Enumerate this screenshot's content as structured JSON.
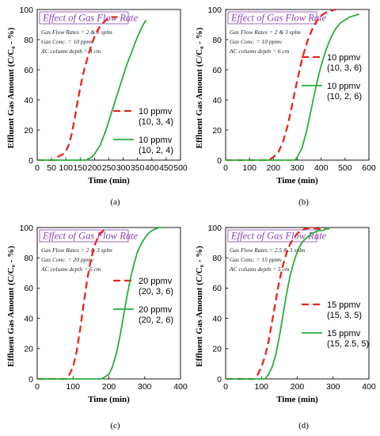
{
  "colors": {
    "red": "#e8251f",
    "green": "#27ad3c",
    "title_box": "#8b3fb0",
    "frame": "#000000"
  },
  "chart_data": [
    {
      "type": "line",
      "panel": "(a)",
      "title": "Effect of Gas Flow Rate",
      "notes": [
        "Gas Flow Rates = 2 & 3 splm",
        "Gas Conc. = 10 ppmv",
        "AC column depth = 4 cm"
      ],
      "xlabel": "Time (min)",
      "ylabel": "Effluent Gas Amount (C/C₀ - %)",
      "xlim": [
        0,
        500
      ],
      "ylim": [
        0,
        100
      ],
      "xticks": [
        0,
        50,
        100,
        150,
        200,
        250,
        300,
        350,
        400,
        450,
        500
      ],
      "yticks": [
        0,
        20,
        40,
        60,
        80,
        100
      ],
      "series": [
        {
          "name": [
            "10 ppmv",
            "(10, 3, 4)"
          ],
          "color": "red",
          "dash": true,
          "x": [
            0,
            65,
            70,
            80,
            90,
            100,
            110,
            120,
            130,
            140,
            150,
            160,
            170,
            180,
            190,
            200,
            210,
            220,
            230,
            240,
            250,
            260,
            270,
            280
          ],
          "y": [
            0,
            0,
            2,
            3,
            4,
            6,
            10,
            17,
            27,
            38,
            48,
            57,
            64,
            71,
            77,
            82,
            86,
            89,
            91,
            93,
            94,
            95,
            95,
            95
          ]
        },
        {
          "name": [
            "10 ppmv",
            "(10, 2, 4)"
          ],
          "color": "green",
          "dash": false,
          "x": [
            0,
            150,
            170,
            180,
            190,
            200,
            210,
            220,
            230,
            240,
            250,
            260,
            270,
            280,
            290,
            300,
            310,
            320,
            330,
            340,
            350,
            360,
            370,
            380
          ],
          "y": [
            0,
            0,
            0,
            1,
            2,
            4,
            7,
            10,
            15,
            20,
            26,
            32,
            38,
            44,
            50,
            56,
            62,
            67,
            72,
            77,
            82,
            86,
            90,
            93
          ]
        }
      ]
    },
    {
      "type": "line",
      "panel": "(b)",
      "title": "Effect of Gas Flow Rate",
      "notes": [
        "Gas Flow Rates = 2 & 3 splm",
        "Gas Conc. = 10 ppmv",
        "AC column depth = 6 cm"
      ],
      "xlabel": "Time (min)",
      "ylabel": "Effluent Gas Amount (C/C₀ - %)",
      "xlim": [
        0,
        600
      ],
      "ylim": [
        0,
        100
      ],
      "xticks": [
        0,
        100,
        200,
        300,
        400,
        500,
        600
      ],
      "yticks": [
        0,
        20,
        40,
        60,
        80,
        100
      ],
      "series": [
        {
          "name": [
            "10 ppmv",
            "(10, 3, 6)"
          ],
          "color": "red",
          "dash": true,
          "x": [
            0,
            180,
            200,
            220,
            240,
            260,
            280,
            300,
            320,
            340,
            360,
            380,
            400,
            420,
            440,
            460
          ],
          "y": [
            0,
            0,
            2,
            5,
            12,
            23,
            38,
            53,
            67,
            78,
            86,
            92,
            96,
            98,
            99,
            100
          ]
        },
        {
          "name": [
            "10 ppmv",
            "(10, 2, 6)"
          ],
          "color": "green",
          "dash": false,
          "x": [
            0,
            290,
            300,
            320,
            340,
            360,
            380,
            400,
            420,
            440,
            460,
            480,
            500,
            520,
            540,
            560
          ],
          "y": [
            0,
            0,
            2,
            8,
            20,
            35,
            50,
            63,
            73,
            81,
            87,
            91,
            93,
            95,
            96,
            97
          ]
        }
      ]
    },
    {
      "type": "line",
      "panel": "(c)",
      "title": "Effect of Gas Flow Rate",
      "notes": [
        "Gas Flow Rates = 2 & 3 splm",
        "Gas Conc. = 20 ppmv",
        "AC column depth = 6 cm"
      ],
      "xlabel": "Time (min)",
      "ylabel": "Effluent Gas Amount (C/C₀ - %)",
      "xlim": [
        0,
        400
      ],
      "ylim": [
        0,
        100
      ],
      "xticks": [
        0,
        100,
        200,
        300,
        400
      ],
      "yticks": [
        0,
        20,
        40,
        60,
        80,
        100
      ],
      "series": [
        {
          "name": [
            "20 ppmv",
            "(20, 3, 6)"
          ],
          "color": "red",
          "dash": true,
          "x": [
            0,
            80,
            90,
            100,
            110,
            120,
            130,
            140,
            150,
            160,
            170,
            180,
            190
          ],
          "y": [
            0,
            0,
            3,
            8,
            18,
            33,
            50,
            66,
            79,
            88,
            94,
            97,
            99
          ]
        },
        {
          "name": [
            "20 ppmv",
            "(20, 2, 6)"
          ],
          "color": "green",
          "dash": false,
          "x": [
            0,
            180,
            200,
            210,
            220,
            230,
            240,
            250,
            260,
            270,
            280,
            290,
            300,
            310,
            320,
            330,
            340,
            350
          ],
          "y": [
            0,
            0,
            3,
            8,
            16,
            27,
            40,
            54,
            66,
            76,
            84,
            89,
            93,
            96,
            98,
            99,
            100,
            100
          ]
        }
      ]
    },
    {
      "type": "line",
      "panel": "(d)",
      "title": "Effect of Gas Flow Rate",
      "notes": [
        "Gas Flow Rates = 2.5 & 3 splm",
        "Gas Conc. = 15 ppmv",
        "AC column depth = 5 cm"
      ],
      "xlabel": "Time (min)",
      "ylabel": "Effluent Gas Amount (C/C₀ - %)",
      "xlim": [
        0,
        400
      ],
      "ylim": [
        0,
        100
      ],
      "xticks": [
        0,
        100,
        200,
        300,
        400
      ],
      "yticks": [
        0,
        20,
        40,
        60,
        80,
        100
      ],
      "series": [
        {
          "name": [
            "15 ppmv",
            "(15, 3, 5)"
          ],
          "color": "red",
          "dash": true,
          "x": [
            0,
            80,
            90,
            100,
            110,
            120,
            130,
            140,
            150,
            160,
            170,
            180,
            190,
            200,
            210,
            220,
            240,
            260,
            280
          ],
          "y": [
            0,
            0,
            3,
            8,
            15,
            25,
            38,
            52,
            65,
            75,
            83,
            89,
            93,
            96,
            98,
            99,
            100,
            99,
            99
          ]
        },
        {
          "name": [
            "15 ppmv",
            "(15, 2.5, 5)"
          ],
          "color": "green",
          "dash": false,
          "x": [
            0,
            110,
            120,
            130,
            140,
            150,
            160,
            170,
            180,
            190,
            200,
            210,
            220,
            230,
            240,
            250,
            260,
            270,
            280,
            290
          ],
          "y": [
            0,
            0,
            3,
            8,
            16,
            28,
            42,
            56,
            68,
            77,
            84,
            89,
            92,
            94,
            96,
            97,
            98,
            98,
            99,
            99
          ]
        }
      ]
    }
  ]
}
